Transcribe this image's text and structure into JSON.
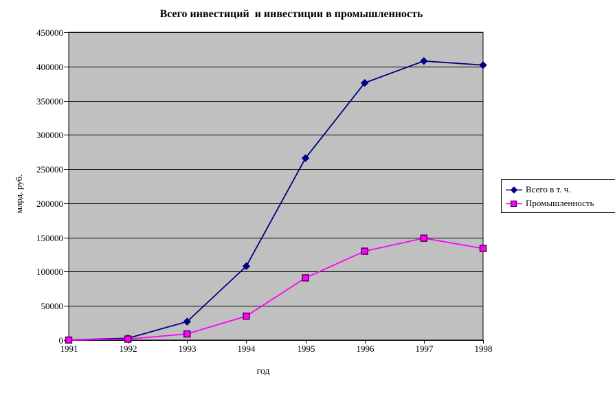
{
  "chart_data": {
    "type": "line",
    "title": "Всего инвестиций  и инвестиции в промышленность",
    "xlabel": "год",
    "ylabel": "млрд. руб.",
    "categories": [
      "1991",
      "1992",
      "1993",
      "1994",
      "1995",
      "1996",
      "1997",
      "1998"
    ],
    "series": [
      {
        "name": "Всего в т. ч.",
        "color": "#000080",
        "marker": "diamond",
        "marker_border": "#000080",
        "values": [
          210,
          2700,
          27000,
          108000,
          266000,
          376000,
          408000,
          402000
        ]
      },
      {
        "name": "Промышленность",
        "color": "#FF00FF",
        "marker": "square",
        "marker_border": "#400040",
        "values": [
          70,
          1500,
          9000,
          35000,
          91000,
          130000,
          149000,
          134000
        ]
      }
    ],
    "ylim": [
      0,
      450000
    ],
    "ytick_step": 50000,
    "yticks": [
      0,
      50000,
      100000,
      150000,
      200000,
      250000,
      300000,
      350000,
      400000,
      450000
    ],
    "grid": true,
    "legend_position": "right",
    "plot_bg": "#C0C0C0",
    "axis_color": "#000000",
    "outer_bg": "#FFFFFF"
  }
}
